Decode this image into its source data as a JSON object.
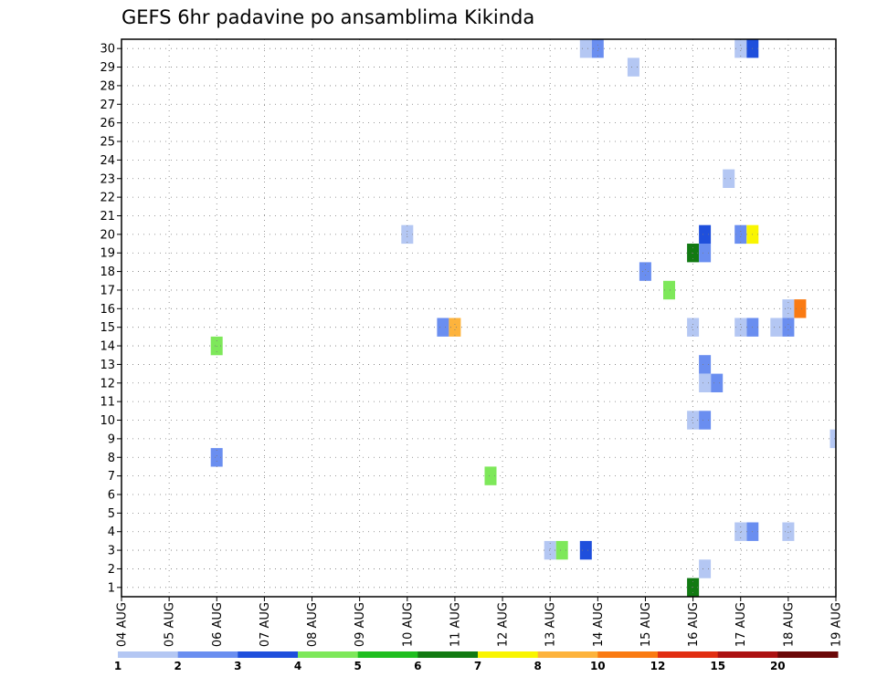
{
  "chart_data": {
    "type": "heatmap",
    "title": "GEFS 6hr padavine po ansamblima Kikinda",
    "y_ticks": [
      "1",
      "2",
      "3",
      "4",
      "5",
      "6",
      "7",
      "8",
      "9",
      "10",
      "11",
      "12",
      "13",
      "14",
      "15",
      "16",
      "17",
      "18",
      "19",
      "20",
      "21",
      "22",
      "23",
      "24",
      "25",
      "26",
      "27",
      "28",
      "29",
      "30"
    ],
    "x_ticks": [
      "04 AUG",
      "05 AUG",
      "06 AUG",
      "07 AUG",
      "08 AUG",
      "09 AUG",
      "10 AUG",
      "11 AUG",
      "12 AUG",
      "13 AUG",
      "14 AUG",
      "15 AUG",
      "16 AUG",
      "17 AUG",
      "18 AUG",
      "19 AUG"
    ],
    "xlim_days": [
      0,
      15
    ],
    "ylim": [
      0.5,
      30.5
    ],
    "time_step_hours": 6,
    "grid": "dotted",
    "legend": {
      "placement": "bottom",
      "colors": [
        "#b4c7f3",
        "#6a8ef0",
        "#1f4fdc",
        "#7ee85a",
        "#1fbe1f",
        "#127a12",
        "#f9f500",
        "#fdb33c",
        "#fa7a12",
        "#e12e12",
        "#ac1212",
        "#6b0808"
      ],
      "labels": [
        "1",
        "2",
        "3",
        "4",
        "5",
        "6",
        "7",
        "8",
        "10",
        "12",
        "15",
        "20"
      ]
    },
    "cells": [
      {
        "member": 30,
        "t": 9.75,
        "v": 1.5
      },
      {
        "member": 30,
        "t": 10.0,
        "v": 2.5
      },
      {
        "member": 30,
        "t": 13.0,
        "v": 1.5
      },
      {
        "member": 30,
        "t": 13.25,
        "v": 3.5
      },
      {
        "member": 29,
        "t": 10.75,
        "v": 1.5
      },
      {
        "member": 23,
        "t": 12.75,
        "v": 1.5
      },
      {
        "member": 20,
        "t": 6.0,
        "v": 1.5
      },
      {
        "member": 20,
        "t": 12.25,
        "v": 3.5
      },
      {
        "member": 20,
        "t": 13.0,
        "v": 2.5
      },
      {
        "member": 20,
        "t": 13.25,
        "v": 7.5
      },
      {
        "member": 19,
        "t": 12.0,
        "v": 1.5
      },
      {
        "member": 19,
        "t": 12.0,
        "v": 6.0
      },
      {
        "member": 19,
        "t": 12.25,
        "v": 2.5
      },
      {
        "member": 18,
        "t": 11.0,
        "v": 2.5
      },
      {
        "member": 17,
        "t": 11.5,
        "v": 4.5
      },
      {
        "member": 16,
        "t": 14.0,
        "v": 1.5
      },
      {
        "member": 16,
        "t": 14.25,
        "v": 10.0
      },
      {
        "member": 15,
        "t": 6.75,
        "v": 2.5
      },
      {
        "member": 15,
        "t": 7.0,
        "v": 9.0
      },
      {
        "member": 15,
        "t": 12.0,
        "v": 1.5
      },
      {
        "member": 15,
        "t": 13.0,
        "v": 1.5
      },
      {
        "member": 15,
        "t": 13.25,
        "v": 2.5
      },
      {
        "member": 15,
        "t": 13.75,
        "v": 1.5
      },
      {
        "member": 15,
        "t": 14.0,
        "v": 2.5
      },
      {
        "member": 14,
        "t": 2.0,
        "v": 4.5
      },
      {
        "member": 13,
        "t": 12.25,
        "v": 2.5
      },
      {
        "member": 12,
        "t": 12.25,
        "v": 1.5
      },
      {
        "member": 12,
        "t": 12.5,
        "v": 2.5
      },
      {
        "member": 10,
        "t": 12.0,
        "v": 1.5
      },
      {
        "member": 10,
        "t": 12.25,
        "v": 2.5
      },
      {
        "member": 9,
        "t": 15.0,
        "v": 1.5
      },
      {
        "member": 8,
        "t": 2.0,
        "v": 2.5
      },
      {
        "member": 7,
        "t": 7.75,
        "v": 4.5
      },
      {
        "member": 4,
        "t": 13.0,
        "v": 1.5
      },
      {
        "member": 4,
        "t": 13.25,
        "v": 2.5
      },
      {
        "member": 4,
        "t": 14.0,
        "v": 1.5
      },
      {
        "member": 3,
        "t": 9.0,
        "v": 1.5
      },
      {
        "member": 3,
        "t": 9.25,
        "v": 4.5
      },
      {
        "member": 3,
        "t": 9.75,
        "v": 3.5
      },
      {
        "member": 2,
        "t": 12.25,
        "v": 1.5
      },
      {
        "member": 1,
        "t": 12.0,
        "v": 1.5
      },
      {
        "member": 1,
        "t": 12.0,
        "v": 6.0
      }
    ]
  }
}
